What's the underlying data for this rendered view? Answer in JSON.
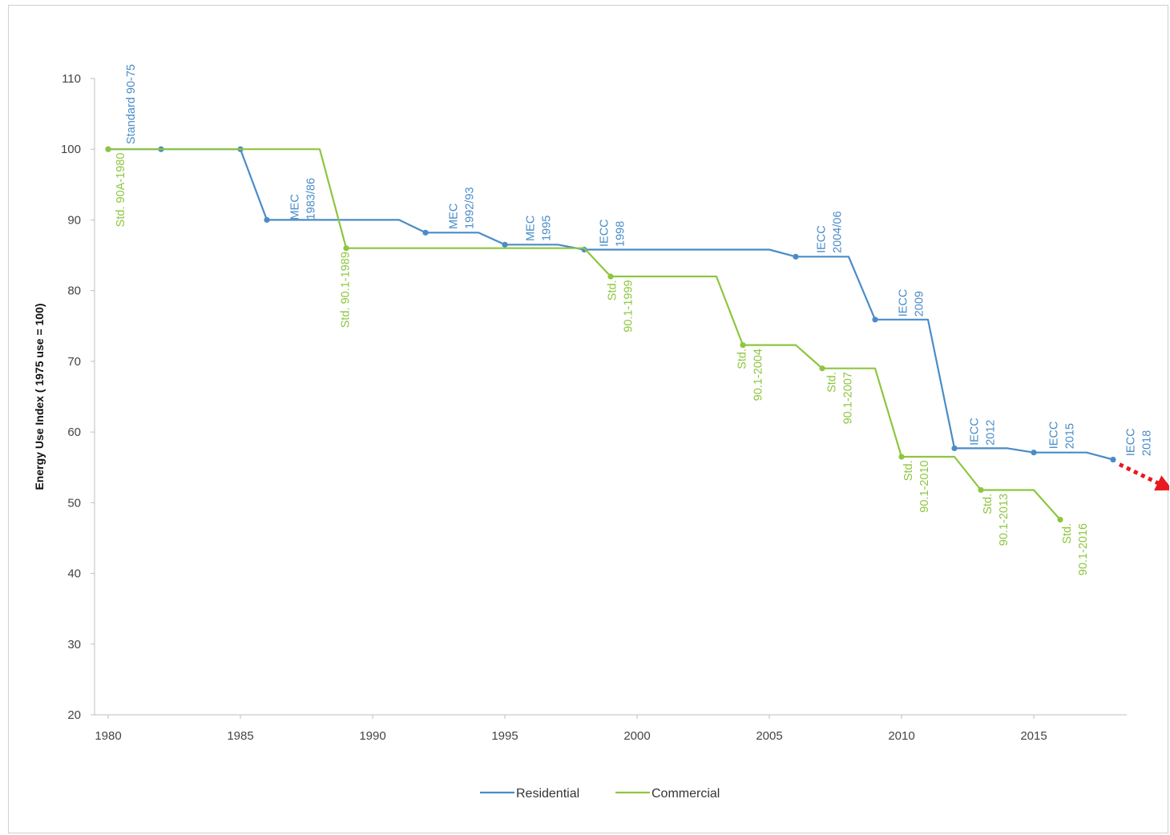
{
  "chart_data": {
    "type": "line",
    "title": "",
    "xlabel": "",
    "ylabel": "Energy Use Index ( 1975 use = 100)",
    "xlim": [
      1980,
      2019
    ],
    "ylim": [
      20,
      110
    ],
    "xticks": [
      "1980",
      "1985",
      "1990",
      "1995",
      "2000",
      "2005",
      "2010",
      "2015"
    ],
    "yticks": [
      "20",
      "30",
      "40",
      "50",
      "60",
      "70",
      "80",
      "90",
      "100",
      "110"
    ],
    "grid": false,
    "legend_position": "bottom",
    "series": [
      {
        "name": "Residential",
        "color": "#4a8cc7",
        "line_points": [
          [
            1980,
            100
          ],
          [
            1982,
            100
          ],
          [
            1985,
            100
          ],
          [
            1986,
            90
          ],
          [
            1991,
            90
          ],
          [
            1992,
            88.2
          ],
          [
            1994,
            88.2
          ],
          [
            1995,
            86.5
          ],
          [
            1997,
            86.5
          ],
          [
            1998,
            85.8
          ],
          [
            2005,
            85.8
          ],
          [
            2006,
            84.8
          ],
          [
            2008,
            84.8
          ],
          [
            2009,
            75.9
          ],
          [
            2011,
            75.9
          ],
          [
            2012,
            57.7
          ],
          [
            2014,
            57.7
          ],
          [
            2015,
            57.1
          ],
          [
            2017,
            57.1
          ],
          [
            2018,
            56.1
          ]
        ],
        "marker_points": [
          [
            1980,
            100
          ],
          [
            1982,
            100
          ],
          [
            1985,
            100
          ],
          [
            1986,
            90
          ],
          [
            1992,
            88.2
          ],
          [
            1995,
            86.5
          ],
          [
            1998,
            85.8
          ],
          [
            2006,
            84.8
          ],
          [
            2009,
            75.9
          ],
          [
            2012,
            57.7
          ],
          [
            2015,
            57.1
          ],
          [
            2018,
            56.1
          ]
        ],
        "annotations": [
          {
            "x": 1981,
            "y": 100.7,
            "lines": [
              "Standard 90-75"
            ]
          },
          {
            "x": 1987.2,
            "y": 90,
            "lines": [
              "MEC",
              "1983/86"
            ]
          },
          {
            "x": 1993.2,
            "y": 88.7,
            "lines": [
              "MEC",
              "1992/93"
            ]
          },
          {
            "x": 1996.1,
            "y": 87.0,
            "lines": [
              "MEC",
              "1995"
            ]
          },
          {
            "x": 1998.9,
            "y": 86.2,
            "lines": [
              "IECC",
              "1998"
            ]
          },
          {
            "x": 2007.1,
            "y": 85.3,
            "lines": [
              "IECC",
              "2004/06"
            ]
          },
          {
            "x": 2010.2,
            "y": 76.3,
            "lines": [
              "IECC",
              "2009"
            ]
          },
          {
            "x": 2012.9,
            "y": 58.1,
            "lines": [
              "IECC",
              "2012"
            ]
          },
          {
            "x": 2015.9,
            "y": 57.6,
            "lines": [
              "IECC",
              "2015"
            ]
          },
          {
            "x": 2018.8,
            "y": 56.6,
            "lines": [
              "IECC",
              "2018"
            ]
          }
        ]
      },
      {
        "name": "Commercial",
        "color": "#8dc63f",
        "line_points": [
          [
            1980,
            100
          ],
          [
            1988,
            100
          ],
          [
            1989,
            86
          ],
          [
            1998,
            86
          ],
          [
            1999,
            82
          ],
          [
            2003,
            82
          ],
          [
            2004,
            72.3
          ],
          [
            2006,
            72.3
          ],
          [
            2007,
            69
          ],
          [
            2009,
            69
          ],
          [
            2010,
            56.5
          ],
          [
            2012,
            56.5
          ],
          [
            2013,
            51.8
          ],
          [
            2015,
            51.8
          ],
          [
            2016,
            47.6
          ]
        ],
        "marker_points": [
          [
            1980,
            100
          ],
          [
            1989,
            86
          ],
          [
            1999,
            82
          ],
          [
            2004,
            72.3
          ],
          [
            2007,
            69
          ],
          [
            2010,
            56.5
          ],
          [
            2013,
            51.8
          ],
          [
            2016,
            47.6
          ]
        ],
        "annotations": [
          {
            "x": 1980.6,
            "y": 99.5,
            "lines": [
              "Std. 90A-1980"
            ]
          },
          {
            "x": 1989.1,
            "y": 85.5,
            "lines": [
              "Std. 90.1-1989"
            ]
          },
          {
            "x": 1999.2,
            "y": 81.5,
            "lines": [
              "Std.",
              "90.1-1999"
            ]
          },
          {
            "x": 2004.1,
            "y": 71.8,
            "lines": [
              "Std.",
              "90.1-2004"
            ]
          },
          {
            "x": 2007.5,
            "y": 68.5,
            "lines": [
              "Std.",
              "90.1-2007"
            ]
          },
          {
            "x": 2010.4,
            "y": 56,
            "lines": [
              "Std.",
              "90.1-2010"
            ]
          },
          {
            "x": 2013.4,
            "y": 51.3,
            "lines": [
              "Std.",
              "90.1-2013"
            ]
          },
          {
            "x": 2016.4,
            "y": 47.1,
            "lines": [
              "Std.",
              "90.1-2016"
            ]
          }
        ]
      }
    ],
    "trend_arrow": {
      "color": "#e8191f",
      "from": [
        2018,
        56.1
      ],
      "to": [
        2020.3,
        51.5
      ]
    },
    "legend": [
      "Residential",
      "Commercial"
    ]
  }
}
